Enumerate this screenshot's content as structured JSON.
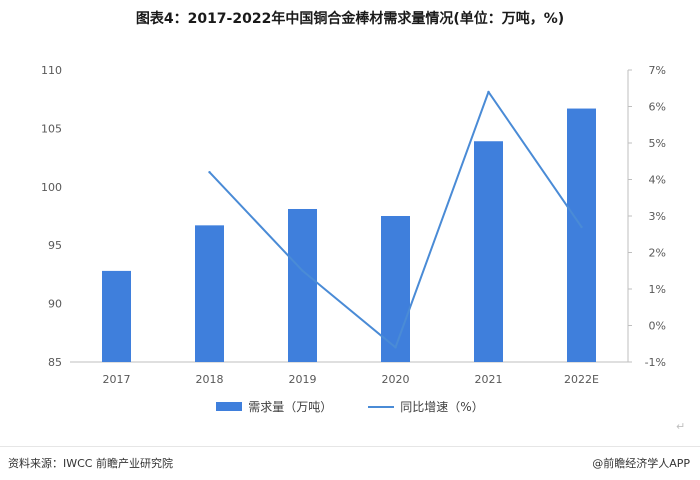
{
  "chart_data": {
    "type": "bar",
    "title": "图表4：2017-2022年中国铜合金棒材需求量情况(单位：万吨，%)",
    "categories": [
      "2017",
      "2018",
      "2019",
      "2020",
      "2021",
      "2022E"
    ],
    "series": [
      {
        "name": "需求量（万吨）",
        "type": "bar",
        "axis": "left",
        "values": [
          92.8,
          96.7,
          98.1,
          97.5,
          103.9,
          106.7
        ],
        "color": "#3f7fdc"
      },
      {
        "name": "同比增速（%）",
        "type": "line",
        "axis": "right",
        "values": [
          null,
          4.2,
          1.5,
          -0.6,
          6.4,
          2.7
        ],
        "color": "#4a8bd6"
      }
    ],
    "ylim_left": [
      85,
      110
    ],
    "yticks_left": [
      "85",
      "90",
      "95",
      "100",
      "105",
      "110"
    ],
    "ylim_right": [
      -1,
      7
    ],
    "yticks_right": [
      "-1%",
      "0%",
      "1%",
      "2%",
      "3%",
      "4%",
      "5%",
      "6%",
      "7%"
    ],
    "grid": false,
    "legend_position": "bottom"
  },
  "footer": {
    "source": "资料来源：IWCC 前瞻产业研究院",
    "brand": "@前瞻经济学人APP",
    "mark": "↵"
  }
}
